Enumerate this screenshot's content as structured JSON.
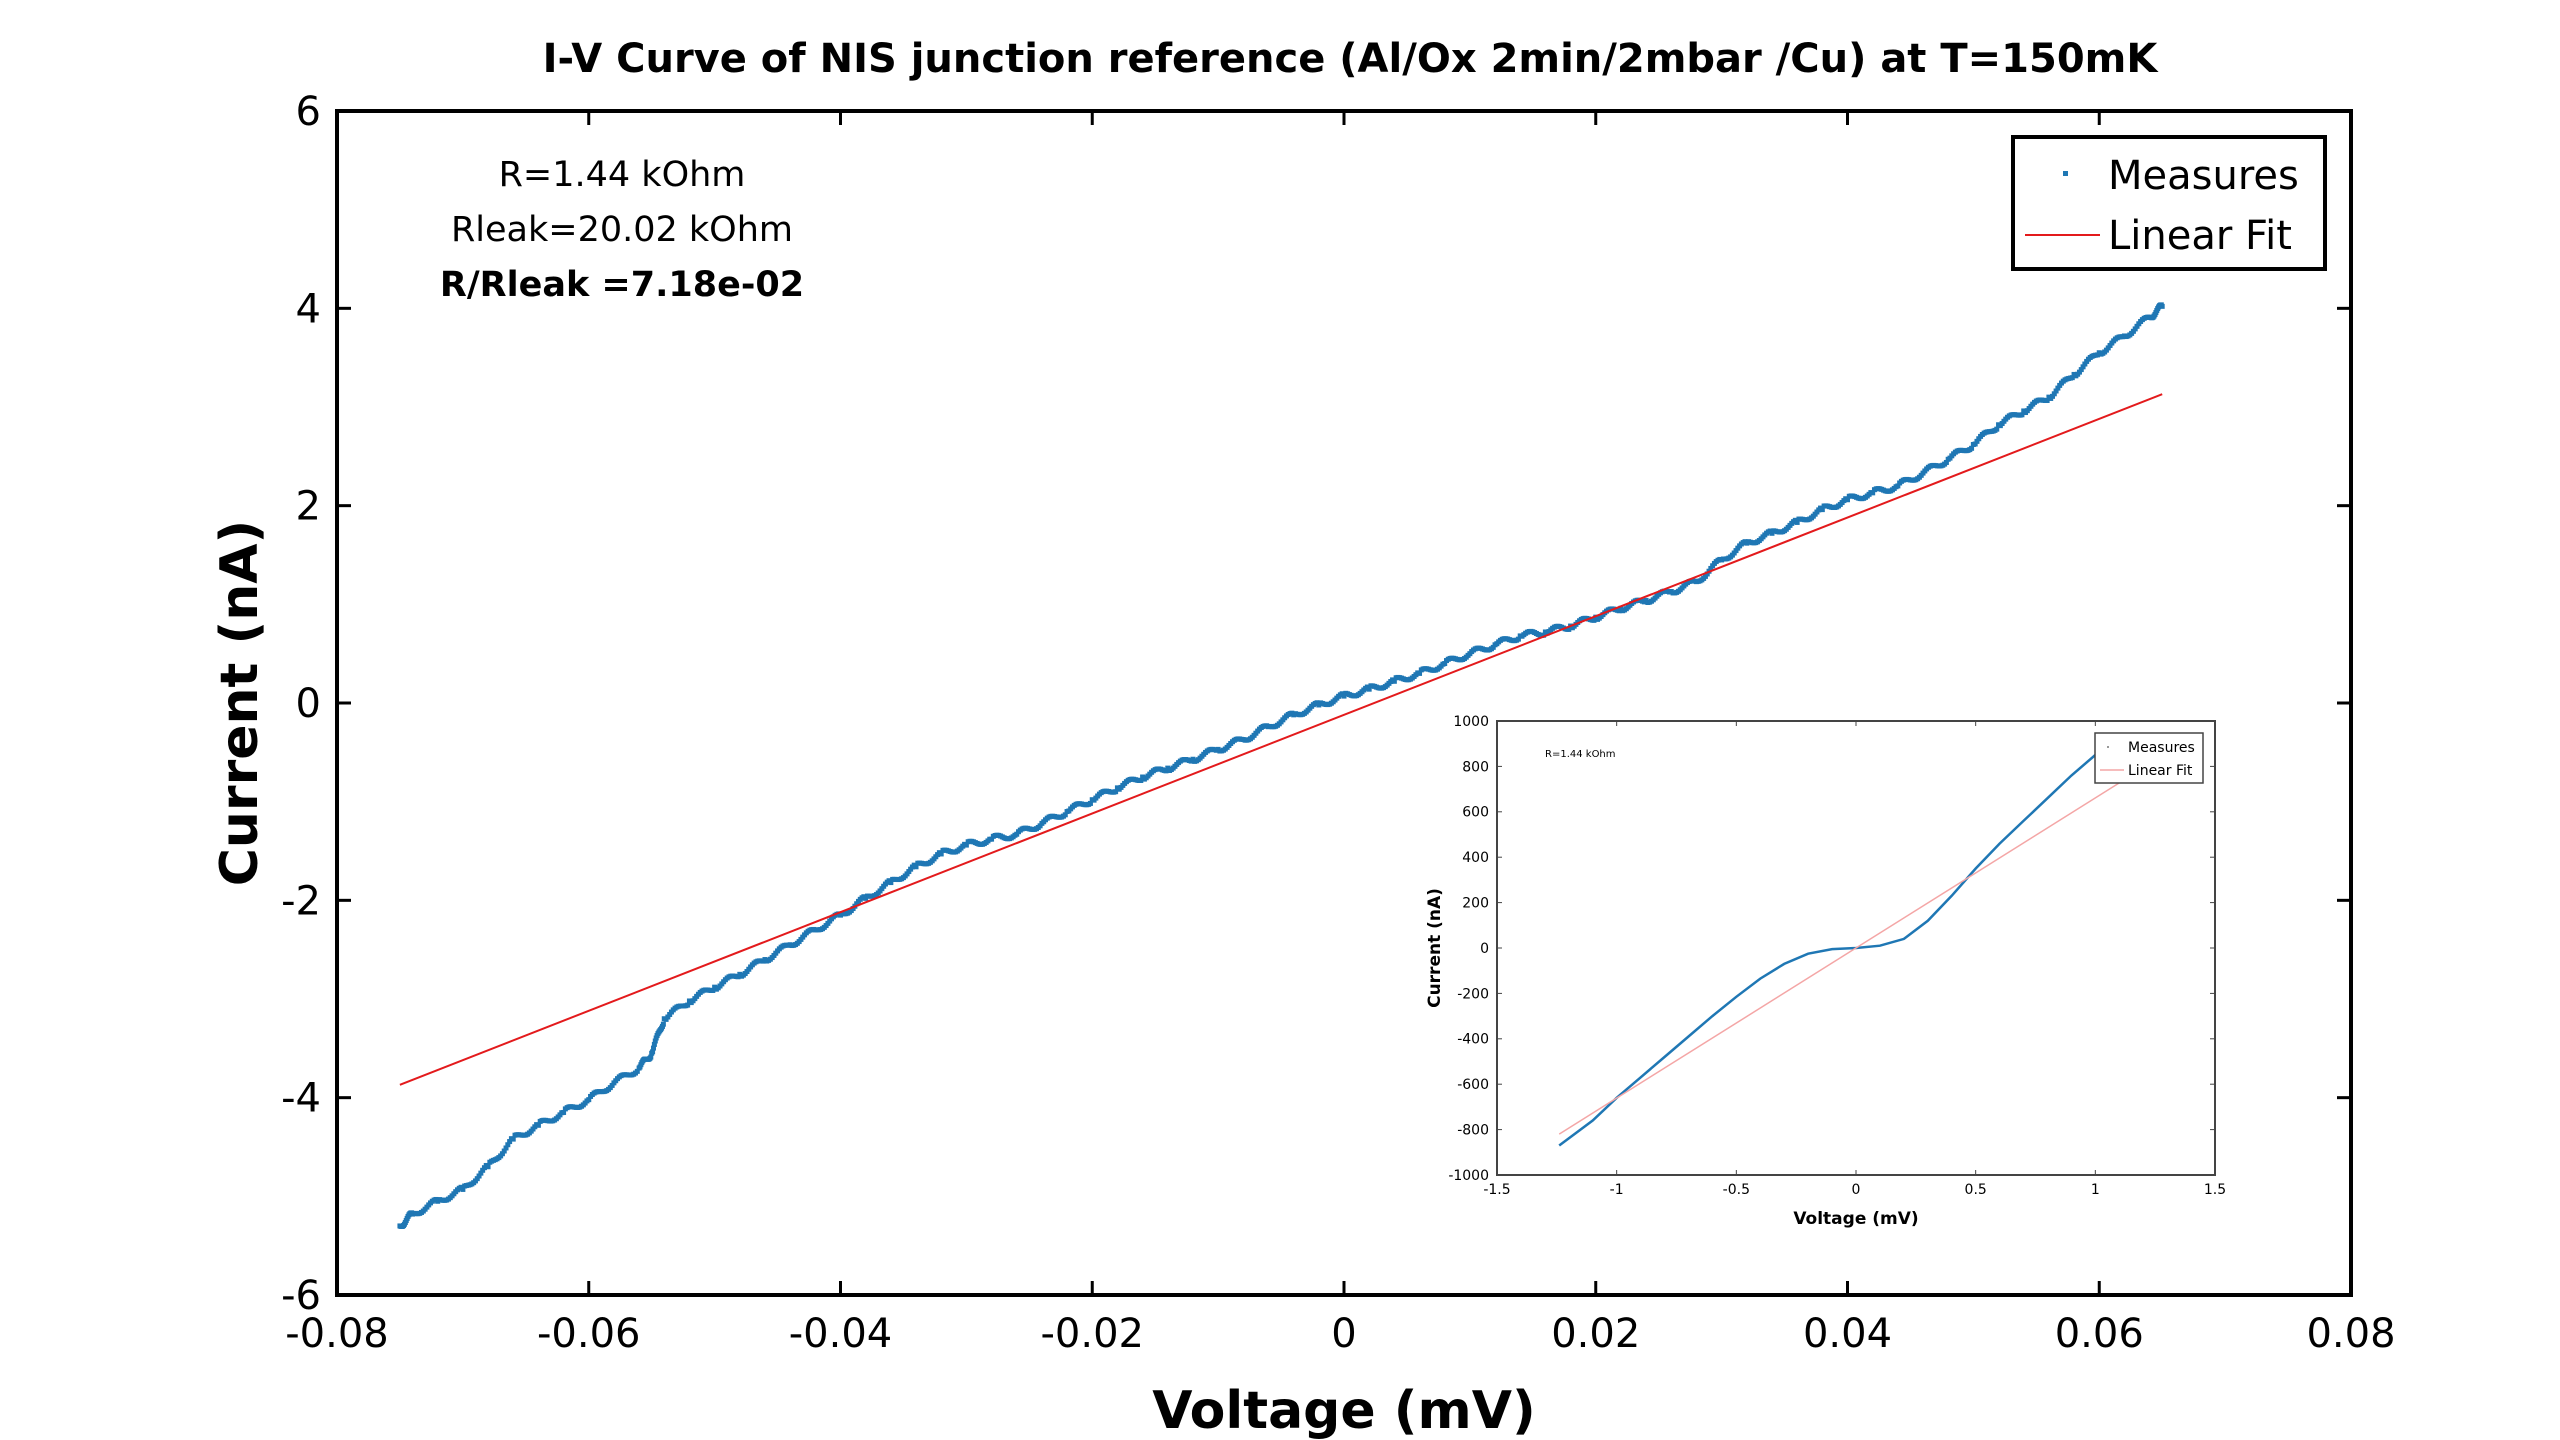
{
  "chart_data": [
    {
      "type": "scatter",
      "title": "I-V Curve of NIS junction reference (Al/Ox 2min/2mbar /Cu) at T=150mK",
      "xlabel": "Voltage (mV)",
      "ylabel": "Current (nA)",
      "xlim": [
        -0.08,
        0.08
      ],
      "ylim": [
        -6,
        6
      ],
      "xticks": [
        -0.08,
        -0.06,
        -0.04,
        -0.02,
        0,
        0.02,
        0.04,
        0.06,
        0.08
      ],
      "xtick_labels": [
        "-0.08",
        "-0.06",
        "-0.04",
        "-0.02",
        "0",
        "0.02",
        "0.04",
        "0.06",
        "0.08"
      ],
      "yticks": [
        -6,
        -4,
        -2,
        0,
        2,
        4,
        6
      ],
      "ytick_labels": [
        "-6",
        "-4",
        "-2",
        "0",
        "2",
        "4",
        "6"
      ],
      "grid": false,
      "legend_position": "top-right",
      "annotations": [
        "R=1.44 kOhm",
        "Rleak=20.02 kOhm",
        "R/Rleak =7.18e-02"
      ],
      "series": [
        {
          "name": "Measures",
          "kind": "scatter",
          "color": "#1f77b4",
          "x": [
            -0.075,
            -0.074,
            -0.072,
            -0.07,
            -0.068,
            -0.066,
            -0.064,
            -0.062,
            -0.06,
            -0.058,
            -0.056,
            -0.055,
            -0.054,
            -0.052,
            -0.05,
            -0.048,
            -0.046,
            -0.044,
            -0.042,
            -0.04,
            -0.038,
            -0.036,
            -0.034,
            -0.032,
            -0.03,
            -0.028,
            -0.026,
            -0.024,
            -0.022,
            -0.02,
            -0.018,
            -0.016,
            -0.014,
            -0.012,
            -0.01,
            -0.008,
            -0.006,
            -0.004,
            -0.002,
            0.0,
            0.002,
            0.004,
            0.006,
            0.008,
            0.01,
            0.012,
            0.014,
            0.016,
            0.018,
            0.02,
            0.022,
            0.024,
            0.026,
            0.028,
            0.03,
            0.032,
            0.034,
            0.036,
            0.038,
            0.04,
            0.042,
            0.044,
            0.046,
            0.048,
            0.05,
            0.052,
            0.054,
            0.056,
            0.058,
            0.06,
            0.062,
            0.064,
            0.065
          ],
          "y": [
            -5.3,
            -5.18,
            -5.05,
            -4.93,
            -4.7,
            -4.42,
            -4.28,
            -4.15,
            -4.02,
            -3.85,
            -3.7,
            -3.55,
            -3.2,
            -3.02,
            -2.88,
            -2.75,
            -2.6,
            -2.45,
            -2.3,
            -2.15,
            -1.98,
            -1.82,
            -1.66,
            -1.53,
            -1.44,
            -1.38,
            -1.33,
            -1.22,
            -1.1,
            -0.98,
            -0.86,
            -0.75,
            -0.66,
            -0.57,
            -0.47,
            -0.37,
            -0.24,
            -0.12,
            -0.02,
            0.07,
            0.14,
            0.22,
            0.3,
            0.4,
            0.5,
            0.59,
            0.68,
            0.72,
            0.78,
            0.87,
            0.96,
            1.04,
            1.13,
            1.23,
            1.45,
            1.62,
            1.72,
            1.83,
            1.96,
            2.06,
            2.13,
            2.2,
            2.33,
            2.47,
            2.62,
            2.82,
            2.96,
            3.1,
            3.33,
            3.55,
            3.72,
            3.91,
            4.02
          ]
        },
        {
          "name": "Linear Fit",
          "kind": "line",
          "color": "#e31a1c",
          "x": [
            -0.075,
            0.065
          ],
          "y": [
            -3.87,
            3.13
          ]
        }
      ]
    },
    {
      "type": "line",
      "title": "",
      "xlabel": "Voltage (mV)",
      "ylabel": "Current (nA)",
      "xlim": [
        -1.5,
        1.5
      ],
      "ylim": [
        -1000,
        1000
      ],
      "xticks": [
        -1.5,
        -1,
        -0.5,
        0,
        0.5,
        1,
        1.5
      ],
      "xtick_labels": [
        "-1.5",
        "-1",
        "-0.5",
        "0",
        "0.5",
        "1",
        "1.5"
      ],
      "yticks": [
        -1000,
        -800,
        -600,
        -400,
        -200,
        0,
        200,
        400,
        600,
        800,
        1000
      ],
      "ytick_labels": [
        "-1000",
        "-800",
        "-600",
        "-400",
        "-200",
        "0",
        "200",
        "400",
        "600",
        "800",
        "1000"
      ],
      "grid": false,
      "legend_position": "top-right",
      "annotations": [
        "R=1.44 kOhm"
      ],
      "series": [
        {
          "name": "Measures",
          "kind": "line",
          "color": "#1f77b4",
          "x": [
            -1.24,
            -1.1,
            -1.0,
            -0.9,
            -0.8,
            -0.7,
            -0.6,
            -0.5,
            -0.4,
            -0.3,
            -0.2,
            -0.1,
            0.0,
            0.1,
            0.2,
            0.3,
            0.4,
            0.5,
            0.6,
            0.7,
            0.8,
            0.9,
            1.0
          ],
          "y": [
            -870,
            -760,
            -660,
            -570,
            -480,
            -390,
            -300,
            -215,
            -135,
            -70,
            -25,
            -5,
            0,
            10,
            40,
            120,
            230,
            350,
            460,
            560,
            660,
            760,
            850
          ]
        },
        {
          "name": "Linear Fit",
          "kind": "line",
          "color": "#f4a6a6",
          "x": [
            -1.24,
            1.24
          ],
          "y": [
            -820,
            820
          ]
        }
      ]
    }
  ]
}
